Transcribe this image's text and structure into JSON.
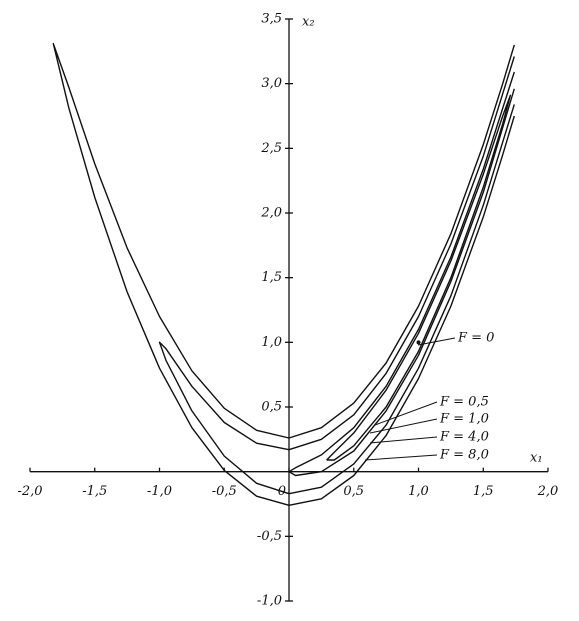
{
  "chart_data": {
    "type": "line",
    "x_label": "x₁",
    "y_label": "x₂",
    "xlim": [
      -2.0,
      2.0
    ],
    "ylim": [
      -1.0,
      3.5
    ],
    "xticks": [
      {
        "value": -2.0,
        "label": "-2,0"
      },
      {
        "value": -1.5,
        "label": "-1,5"
      },
      {
        "value": -1.0,
        "label": "-1,0"
      },
      {
        "value": -0.5,
        "label": "-0,5"
      },
      0,
      {
        "value": 0.5,
        "label": "0,5"
      },
      {
        "value": 1.0,
        "label": "1,0"
      },
      {
        "value": 1.5,
        "label": "1,5"
      },
      {
        "value": 2.0,
        "label": "2,0"
      }
    ],
    "yticks": [
      {
        "value": -1.0,
        "label": "-1,0"
      },
      {
        "value": -0.5,
        "label": "-0,5"
      },
      {
        "value": 0.5,
        "label": "0,5"
      },
      {
        "value": 1.0,
        "label": "1,0"
      },
      {
        "value": 1.5,
        "label": "1,5"
      },
      {
        "value": 2.0,
        "label": "2,0"
      },
      {
        "value": 2.5,
        "label": "2,5"
      },
      {
        "value": 3.0,
        "label": "3,0"
      },
      {
        "value": 3.5,
        "label": "3,5"
      }
    ],
    "series": [
      {
        "name": "F = 0",
        "color": "#111111",
        "x": [
          1.0
        ],
        "y": [
          1.0
        ]
      },
      {
        "name": "F = 0,5",
        "color": "#111111",
        "x": [
          0.29,
          0.35,
          0.5,
          0.75,
          1.0,
          1.25,
          1.5,
          1.65,
          1.71,
          1.65,
          1.5,
          1.25,
          1.0,
          0.75,
          0.5,
          0.35,
          0.29
        ],
        "y": [
          0.09,
          0.15,
          0.3,
          0.63,
          1.07,
          1.63,
          2.3,
          2.75,
          2.91,
          2.69,
          2.2,
          1.5,
          0.93,
          0.5,
          0.2,
          0.09,
          0.09
        ]
      },
      {
        "name": "F = 1,0",
        "color": "#111111",
        "x": [
          1.74,
          1.5,
          1.25,
          1.0,
          0.75,
          0.5,
          0.25,
          0.05,
          0,
          0.05,
          0.25,
          0.5,
          0.75,
          1.0,
          1.25,
          1.5,
          1.74
        ],
        "y": [
          3.09,
          2.34,
          1.66,
          1.1,
          0.66,
          0.34,
          0.13,
          0.03,
          0,
          -0.03,
          0.0,
          0.16,
          0.47,
          0.9,
          1.47,
          2.16,
          2.96
        ]
      },
      {
        "name": "F = 4,0",
        "color": "#111111",
        "x": [
          1.74,
          1.5,
          1.25,
          1.0,
          0.75,
          0.5,
          0.25,
          0,
          -0.25,
          -0.5,
          -0.75,
          -0.95,
          -1.0,
          -0.95,
          -0.75,
          -0.5,
          -0.25,
          0,
          0.25,
          0.5,
          0.75,
          1.0,
          1.25,
          1.5,
          1.74
        ],
        "y": [
          3.21,
          2.44,
          1.76,
          1.2,
          0.76,
          0.44,
          0.25,
          0.17,
          0.22,
          0.38,
          0.66,
          0.95,
          1.0,
          0.86,
          0.47,
          0.12,
          -0.09,
          -0.17,
          -0.12,
          0.06,
          0.36,
          0.8,
          1.36,
          2.06,
          2.84
        ]
      },
      {
        "name": "F = 8,0",
        "color": "#111111",
        "x": [
          1.74,
          1.65,
          1.5,
          1.25,
          1.0,
          0.75,
          0.5,
          0.25,
          0,
          -0.25,
          -0.5,
          -0.75,
          -1.0,
          -1.25,
          -1.5,
          -1.7,
          -1.82,
          -1.7,
          -1.5,
          -1.25,
          -1.0,
          -0.75,
          -0.5,
          -0.25,
          0,
          0.25,
          0.5,
          0.75,
          1.0,
          1.25,
          1.5,
          1.65,
          1.74
        ],
        "y": [
          3.3,
          3.0,
          2.53,
          1.84,
          1.28,
          0.84,
          0.53,
          0.34,
          0.26,
          0.32,
          0.49,
          0.78,
          1.2,
          1.73,
          2.38,
          2.97,
          3.31,
          2.81,
          2.12,
          1.39,
          0.8,
          0.34,
          0.01,
          -0.19,
          -0.26,
          -0.21,
          -0.03,
          0.28,
          0.72,
          1.28,
          1.97,
          2.45,
          2.75
        ]
      }
    ]
  }
}
